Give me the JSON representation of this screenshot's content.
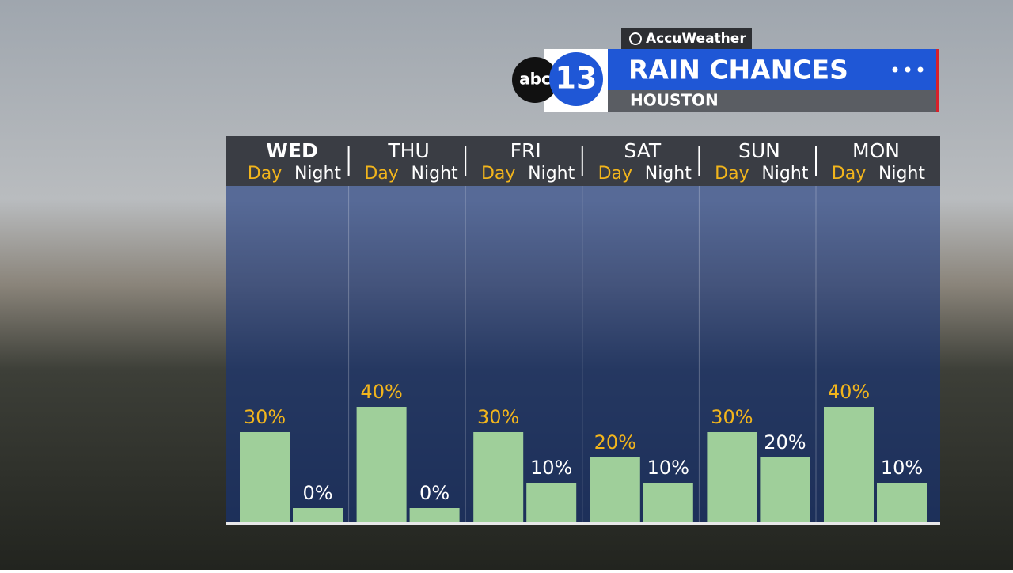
{
  "brand": {
    "provider": "AccuWeather",
    "station_abc": "abc",
    "station_number": "13"
  },
  "chart_data": {
    "type": "bar",
    "title": "RAIN CHANCES",
    "subtitle": "HOUSTON",
    "categories": [
      "WED",
      "THU",
      "FRI",
      "SAT",
      "SUN",
      "MON"
    ],
    "series": [
      {
        "name": "Day",
        "color": "#9fcf9a",
        "label_color": "#f2b51c",
        "values": [
          30,
          40,
          30,
          20,
          30,
          40
        ],
        "value_labels": [
          "30%",
          "40%",
          "30%",
          "20%",
          "30%",
          "40%"
        ]
      },
      {
        "name": "Night",
        "color": "#9fcf9a",
        "label_color": "#ffffff",
        "values": [
          0,
          0,
          10,
          10,
          20,
          10
        ],
        "value_labels": [
          "0%",
          "0%",
          "10%",
          "10%",
          "20%",
          "10%"
        ]
      }
    ]
  }
}
